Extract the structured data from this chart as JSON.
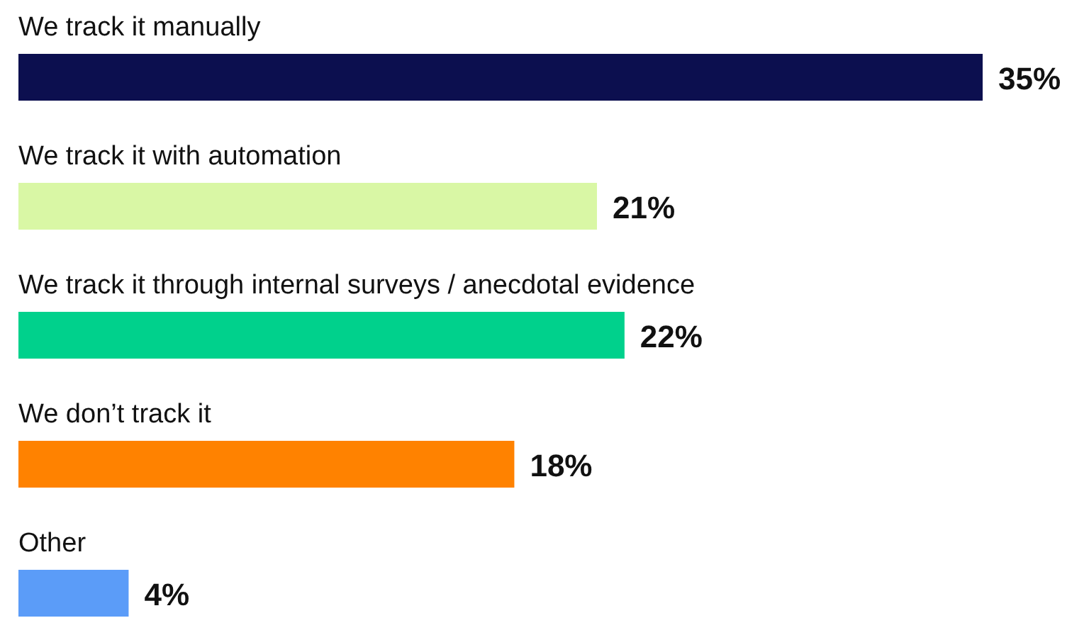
{
  "chart_data": {
    "type": "bar",
    "orientation": "horizontal",
    "categories": [
      "We track it manually",
      "We track it with automation",
      "We track it through internal surveys / anecdotal evidence",
      "We don’t track it",
      "Other"
    ],
    "values": [
      35,
      21,
      22,
      18,
      4
    ],
    "colors": [
      "#0c0f4f",
      "#d9f7a5",
      "#00d18c",
      "#ff8200",
      "#5b9cf8"
    ],
    "value_labels": [
      "35%",
      "21%",
      "22%",
      "18%",
      "4%"
    ]
  }
}
